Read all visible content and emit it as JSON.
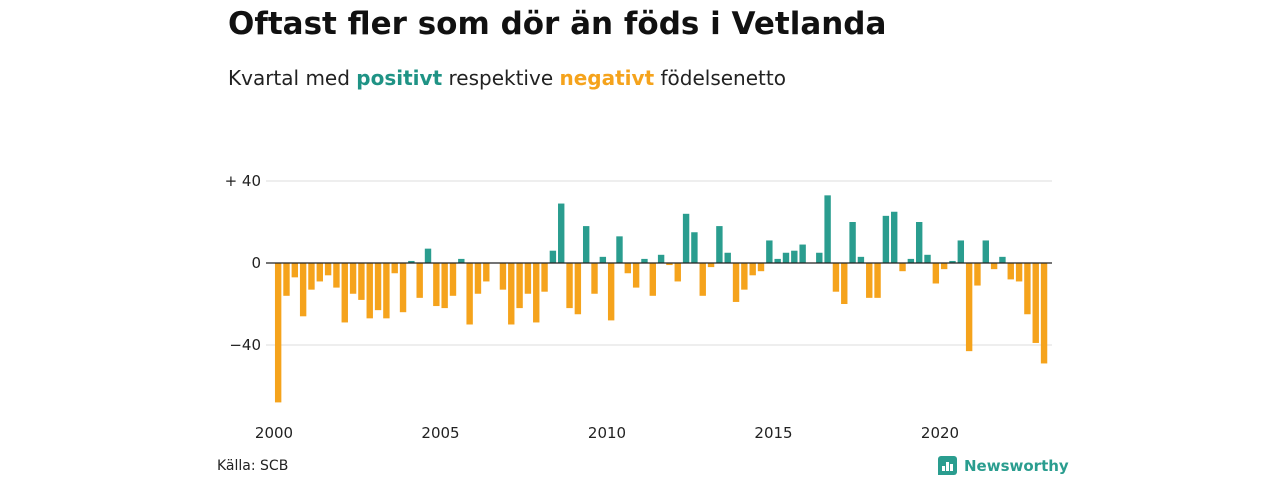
{
  "title": "Oftast fler som dör än föds i Vetlanda",
  "subtitle": {
    "pre": "Kvartal med",
    "positive": "positivt",
    "mid": "respektive",
    "negative": "negativt",
    "post": "födelsenetto"
  },
  "colors": {
    "positive": "#2a9d8f",
    "negative": "#f5a31c",
    "grid": "#dddddd",
    "zero": "#222222"
  },
  "source": "Källa: SCB",
  "logo": {
    "text": "Newsworthy",
    "icon": "newsworthy-logo-icon"
  },
  "chart_data": {
    "type": "bar",
    "x_start": "2000 Q1",
    "x_ticks": [
      "2000",
      "2005",
      "2010",
      "2015",
      "2020"
    ],
    "y_ticks": [
      {
        "value": 40,
        "label": "+ 40"
      },
      {
        "value": 0,
        "label": "0"
      },
      {
        "value": -40,
        "label": "−40"
      }
    ],
    "ylim": [
      -70,
      40
    ],
    "grid": true,
    "values": [
      -68,
      -16,
      -7,
      -26,
      -13,
      -9,
      -6,
      -12,
      -29,
      -15,
      -18,
      -27,
      -23,
      -27,
      -5,
      -24,
      1,
      -17,
      7,
      -21,
      -22,
      -16,
      2,
      -30,
      -15,
      -9,
      0,
      -13,
      -30,
      -22,
      -15,
      -29,
      -14,
      6,
      29,
      -22,
      -25,
      18,
      -15,
      3,
      -28,
      13,
      -5,
      -12,
      2,
      -16,
      4,
      -1,
      -9,
      24,
      15,
      -16,
      -2,
      18,
      5,
      -19,
      -13,
      -6,
      -4,
      11,
      2,
      5,
      6,
      9,
      0,
      5,
      33,
      -14,
      -20,
      20,
      3,
      -17,
      -17,
      23,
      25,
      -4,
      2,
      20,
      4,
      -10,
      -3,
      1,
      11,
      -43,
      -11,
      11,
      -3,
      3,
      -8,
      -9,
      -25,
      -39,
      -49
    ]
  }
}
